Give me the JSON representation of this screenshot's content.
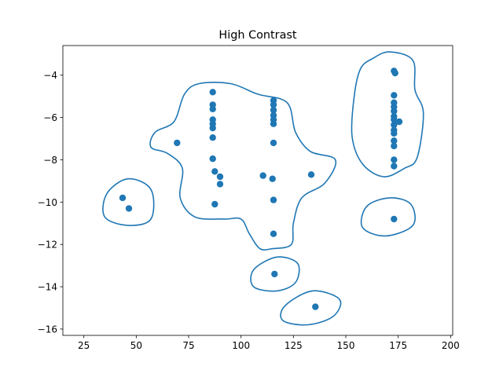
{
  "chart_data": {
    "type": "scatter",
    "title": "High Contrast",
    "xlabel": "",
    "ylabel": "",
    "xlim": [
      15,
      201
    ],
    "ylim": [
      -16.3,
      -2.6
    ],
    "xticks": [
      25,
      50,
      75,
      100,
      125,
      150,
      175,
      200
    ],
    "yticks": [
      -16,
      -14,
      -12,
      -10,
      -8,
      -6,
      -4
    ],
    "xtick_labels": [
      "25",
      "50",
      "75",
      "100",
      "125",
      "150",
      "175",
      "200"
    ],
    "ytick_labels": [
      "−16",
      "−14",
      "−12",
      "−10",
      "−8",
      "−6",
      "−4"
    ],
    "grid": false,
    "colors": {
      "points": "#1f77b4",
      "contours": "#1f77b4"
    },
    "series": [
      {
        "points": [
          [
            43.5,
            -9.8
          ],
          [
            46.5,
            -10.3
          ],
          [
            69.5,
            -7.2
          ],
          [
            86.5,
            -4.8
          ],
          [
            86.5,
            -5.4
          ],
          [
            86.5,
            -5.6
          ],
          [
            86.5,
            -6.1
          ],
          [
            86.5,
            -6.3
          ],
          [
            86.5,
            -6.5
          ],
          [
            86.5,
            -6.95
          ],
          [
            86.5,
            -7.95
          ],
          [
            87.5,
            -8.55
          ],
          [
            87.5,
            -10.1
          ],
          [
            90,
            -8.8
          ],
          [
            90,
            -9.15
          ],
          [
            110.5,
            -8.75
          ],
          [
            115,
            -8.9
          ],
          [
            115.5,
            -5.2
          ],
          [
            115.5,
            -5.4
          ],
          [
            115.5,
            -5.65
          ],
          [
            115.5,
            -5.9
          ],
          [
            115.5,
            -6.1
          ],
          [
            115.5,
            -6.3
          ],
          [
            115.5,
            -7.2
          ],
          [
            115.5,
            -9.9
          ],
          [
            115.5,
            -11.5
          ],
          [
            116,
            -13.4
          ],
          [
            133.5,
            -8.7
          ],
          [
            135.5,
            -14.95
          ],
          [
            173,
            -3.8
          ],
          [
            173.5,
            -3.9
          ],
          [
            173,
            -4.95
          ],
          [
            173,
            -5.3
          ],
          [
            173,
            -5.5
          ],
          [
            173,
            -5.7
          ],
          [
            173,
            -5.95
          ],
          [
            173,
            -6.1
          ],
          [
            175.5,
            -6.2
          ],
          [
            173,
            -6.35
          ],
          [
            173,
            -6.6
          ],
          [
            173,
            -6.75
          ],
          [
            173,
            -7.1
          ],
          [
            173,
            -7.35
          ],
          [
            173,
            -8.0
          ],
          [
            173,
            -8.3
          ],
          [
            173,
            -10.8
          ]
        ]
      }
    ],
    "contours": [
      [
        [
          80,
          -4.4
        ],
        [
          95,
          -4.4
        ],
        [
          108,
          -4.9
        ],
        [
          122,
          -5.3
        ],
        [
          126,
          -6.7
        ],
        [
          133,
          -7.6
        ],
        [
          145,
          -8.0
        ],
        [
          140,
          -9.1
        ],
        [
          129,
          -9.8
        ],
        [
          125,
          -11.0
        ],
        [
          124,
          -12.0
        ],
        [
          115,
          -12.2
        ],
        [
          109,
          -12.2
        ],
        [
          104,
          -11.5
        ],
        [
          100,
          -10.8
        ],
        [
          92,
          -10.8
        ],
        [
          78,
          -10.7
        ],
        [
          71,
          -9.8
        ],
        [
          72,
          -8.4
        ],
        [
          65,
          -7.7
        ],
        [
          57,
          -7.4
        ],
        [
          59,
          -6.7
        ],
        [
          68,
          -6.2
        ],
        [
          73,
          -4.9
        ]
      ],
      [
        [
          46,
          -8.9
        ],
        [
          57,
          -9.4
        ],
        [
          57,
          -10.8
        ],
        [
          46,
          -11.1
        ],
        [
          35,
          -10.7
        ],
        [
          36,
          -9.6
        ]
      ],
      [
        [
          171,
          -2.9
        ],
        [
          182,
          -3.3
        ],
        [
          183,
          -4.7
        ],
        [
          187,
          -5.8
        ],
        [
          184,
          -7.9
        ],
        [
          178,
          -8.4
        ],
        [
          168,
          -8.8
        ],
        [
          158,
          -8.2
        ],
        [
          153,
          -6.9
        ],
        [
          154,
          -5.0
        ],
        [
          157,
          -3.7
        ],
        [
          163,
          -3.2
        ]
      ],
      [
        [
          171,
          -9.8
        ],
        [
          181,
          -10.1
        ],
        [
          182,
          -11.1
        ],
        [
          169,
          -11.6
        ],
        [
          158,
          -11.2
        ],
        [
          160,
          -10.2
        ]
      ],
      [
        [
          117,
          -12.6
        ],
        [
          127,
          -12.9
        ],
        [
          126,
          -13.8
        ],
        [
          117,
          -14.2
        ],
        [
          106,
          -14.0
        ],
        [
          106,
          -13.2
        ]
      ],
      [
        [
          134,
          -14.2
        ],
        [
          147,
          -14.6
        ],
        [
          144,
          -15.4
        ],
        [
          132,
          -15.8
        ],
        [
          120,
          -15.6
        ],
        [
          121,
          -14.9
        ]
      ]
    ]
  }
}
